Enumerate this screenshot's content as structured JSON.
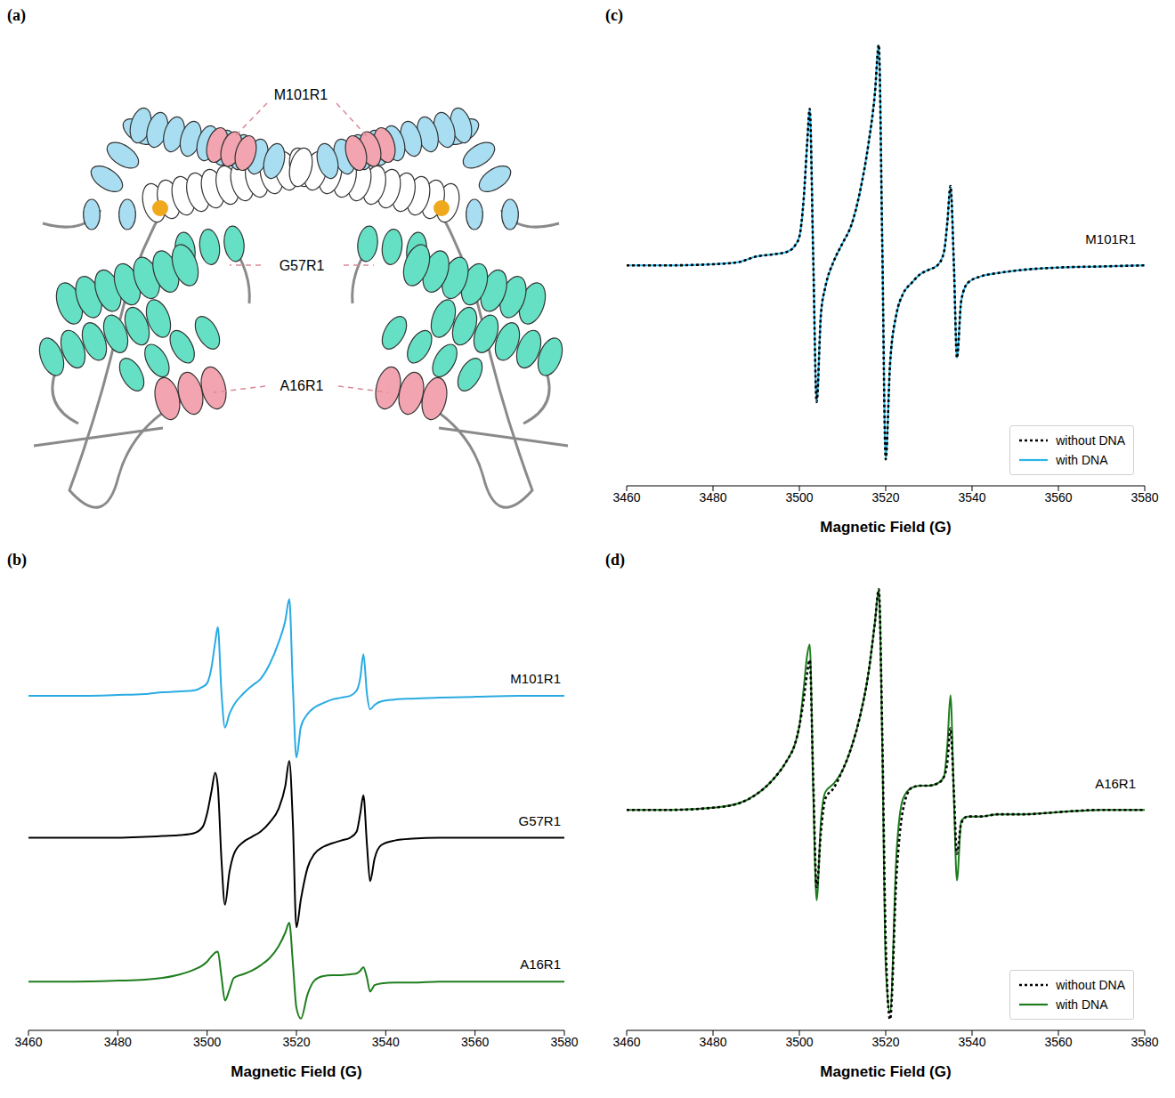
{
  "chart_data": [
    {
      "type": "diagram",
      "title": "(a)",
      "annotations": [
        "M101R1",
        "G57R1",
        "A16R1"
      ]
    },
    {
      "type": "line",
      "title": "(b)",
      "xlabel": "Magnetic Field (G)",
      "tick_labels": "x",
      "x": [
        3460,
        3470,
        3480,
        3486,
        3490,
        3494,
        3497,
        3499,
        3500,
        3501,
        3501.8,
        3502.4,
        3503.2,
        3504,
        3505,
        3506,
        3508,
        3510,
        3512,
        3514,
        3516,
        3517.5,
        3518.4,
        3519.2,
        3520,
        3521,
        3522.5,
        3524,
        3526,
        3528,
        3530,
        3532,
        3533.5,
        3534.3,
        3535,
        3535.8,
        3536.5,
        3537.5,
        3539,
        3542,
        3546,
        3552,
        3560,
        3570,
        3580
      ],
      "series": [
        {
          "name": "M101R1",
          "color": "#29abe2",
          "line_style": "solid",
          "values": [
            3.7,
            3.7,
            3.71,
            3.72,
            3.74,
            3.75,
            3.76,
            3.8,
            3.84,
            4.02,
            4.29,
            4.46,
            3.75,
            3.35,
            3.5,
            3.6,
            3.72,
            3.81,
            3.89,
            4.05,
            4.29,
            4.53,
            4.77,
            3.81,
            3.02,
            3.36,
            3.5,
            3.57,
            3.62,
            3.66,
            3.68,
            3.7,
            3.76,
            3.9,
            4.16,
            3.72,
            3.55,
            3.6,
            3.64,
            3.66,
            3.67,
            3.68,
            3.69,
            3.7,
            3.7
          ]
        },
        {
          "name": "G57R1",
          "color": "#000000",
          "line_style": "solid",
          "values": [
            2.13,
            2.13,
            2.13,
            2.14,
            2.15,
            2.16,
            2.18,
            2.25,
            2.4,
            2.65,
            2.85,
            2.7,
            1.9,
            1.39,
            1.75,
            1.95,
            2.08,
            2.14,
            2.2,
            2.3,
            2.45,
            2.7,
            2.98,
            2.3,
            1.14,
            1.45,
            1.8,
            1.95,
            2.03,
            2.07,
            2.1,
            2.13,
            2.2,
            2.4,
            2.6,
            2.05,
            1.65,
            1.9,
            2.05,
            2.1,
            2.12,
            2.13,
            2.13,
            2.13,
            2.13
          ]
        },
        {
          "name": "A16R1",
          "color": "#1e7d1e",
          "line_style": "solid",
          "values": [
            0.54,
            0.54,
            0.55,
            0.56,
            0.58,
            0.62,
            0.67,
            0.72,
            0.76,
            0.82,
            0.86,
            0.87,
            0.6,
            0.33,
            0.45,
            0.58,
            0.62,
            0.66,
            0.72,
            0.8,
            0.93,
            1.08,
            1.19,
            0.75,
            0.25,
            0.13,
            0.4,
            0.55,
            0.6,
            0.61,
            0.61,
            0.62,
            0.63,
            0.66,
            0.7,
            0.58,
            0.43,
            0.5,
            0.52,
            0.53,
            0.53,
            0.54,
            0.54,
            0.54,
            0.54
          ]
        }
      ],
      "xlim": [
        3460,
        3580
      ],
      "xticks": [
        3460,
        3480,
        3500,
        3520,
        3540,
        3560,
        3580
      ],
      "ylim": [
        0,
        5
      ]
    },
    {
      "type": "line",
      "title": "(c)",
      "xlabel": "Magnetic Field (G)",
      "tick_labels": "x",
      "annotations": [
        "M101R1"
      ],
      "legend": "lower right",
      "x": [
        3460,
        3470,
        3480,
        3486,
        3490,
        3494,
        3497,
        3499,
        3500,
        3501,
        3501.8,
        3502.4,
        3503.2,
        3504,
        3505,
        3506,
        3508,
        3510,
        3512,
        3514,
        3516,
        3517.5,
        3518.4,
        3519.2,
        3520,
        3521,
        3522.5,
        3524,
        3526,
        3528,
        3530,
        3532,
        3533.5,
        3534.3,
        3535,
        3535.8,
        3536.5,
        3537.5,
        3539,
        3542,
        3546,
        3552,
        3560,
        3570,
        3580
      ],
      "series": [
        {
          "name": "without DNA",
          "color": "#000000",
          "line_style": "dotted",
          "values": [
            0,
            0,
            0.005,
            0.015,
            0.04,
            0.05,
            0.06,
            0.09,
            0.13,
            0.3,
            0.55,
            0.71,
            0.05,
            -0.62,
            -0.22,
            -0.1,
            0.02,
            0.1,
            0.18,
            0.33,
            0.55,
            0.78,
            1.0,
            0.1,
            -0.88,
            -0.45,
            -0.22,
            -0.13,
            -0.08,
            -0.04,
            -0.02,
            0,
            0.06,
            0.2,
            0.36,
            0,
            -0.42,
            -0.16,
            -0.08,
            -0.05,
            -0.035,
            -0.02,
            -0.01,
            -0.005,
            0
          ]
        },
        {
          "name": "with DNA",
          "color": "#29b6e8",
          "line_style": "solid",
          "values": [
            0,
            0,
            0.005,
            0.015,
            0.04,
            0.05,
            0.06,
            0.09,
            0.13,
            0.3,
            0.55,
            0.71,
            0.05,
            -0.62,
            -0.22,
            -0.1,
            0.02,
            0.1,
            0.18,
            0.33,
            0.55,
            0.78,
            1.0,
            0.1,
            -0.88,
            -0.45,
            -0.22,
            -0.13,
            -0.08,
            -0.04,
            -0.02,
            0,
            0.06,
            0.2,
            0.36,
            0,
            -0.42,
            -0.16,
            -0.08,
            -0.05,
            -0.035,
            -0.02,
            -0.01,
            -0.005,
            0
          ]
        }
      ],
      "xlim": [
        3460,
        3580
      ],
      "xticks": [
        3460,
        3480,
        3500,
        3520,
        3540,
        3560,
        3580
      ],
      "ylim": [
        -1,
        1.05
      ]
    },
    {
      "type": "line",
      "title": "(d)",
      "xlabel": "Magnetic Field (G)",
      "tick_labels": "x",
      "annotations": [
        "A16R1"
      ],
      "legend": "lower right",
      "x": [
        3460,
        3470,
        3480,
        3486,
        3490,
        3494,
        3497,
        3499,
        3500,
        3501,
        3501.8,
        3502.4,
        3503.2,
        3504,
        3505,
        3506,
        3508,
        3510,
        3512,
        3514,
        3516,
        3517.5,
        3518.4,
        3519.2,
        3520,
        3521,
        3522.5,
        3524,
        3526,
        3528,
        3530,
        3532,
        3533.5,
        3534.3,
        3535,
        3535.8,
        3536.5,
        3537.5,
        3539,
        3542,
        3546,
        3552,
        3560,
        3570,
        3580
      ],
      "series": [
        {
          "name": "without DNA",
          "color": "#000000",
          "line_style": "dotted",
          "values": [
            0,
            0,
            0.01,
            0.03,
            0.07,
            0.14,
            0.22,
            0.3,
            0.38,
            0.5,
            0.62,
            0.68,
            0.15,
            -0.35,
            -0.1,
            0.05,
            0.1,
            0.18,
            0.28,
            0.42,
            0.62,
            0.85,
            1.0,
            0.35,
            -0.6,
            -0.95,
            -0.3,
            0,
            0.1,
            0.11,
            0.11,
            0.12,
            0.15,
            0.22,
            0.37,
            0.08,
            -0.2,
            -0.06,
            -0.03,
            -0.03,
            -0.02,
            -0.02,
            -0.01,
            0,
            0
          ]
        },
        {
          "name": "with DNA",
          "color": "#1e7d1e",
          "line_style": "solid",
          "values": [
            0,
            0,
            0.01,
            0.03,
            0.07,
            0.14,
            0.22,
            0.3,
            0.38,
            0.55,
            0.7,
            0.75,
            0.1,
            -0.41,
            -0.05,
            0.08,
            0.12,
            0.18,
            0.28,
            0.42,
            0.62,
            0.85,
            1.0,
            0.3,
            -0.7,
            -0.92,
            -0.2,
            0.05,
            0.1,
            0.11,
            0.11,
            0.12,
            0.15,
            0.3,
            0.52,
            0.05,
            -0.32,
            -0.05,
            -0.03,
            -0.03,
            -0.02,
            -0.02,
            -0.01,
            0,
            0
          ]
        }
      ],
      "xlim": [
        3460,
        3580
      ],
      "xticks": [
        3460,
        3480,
        3500,
        3520,
        3540,
        3560,
        3580
      ],
      "ylim": [
        -1,
        1.05
      ]
    }
  ]
}
